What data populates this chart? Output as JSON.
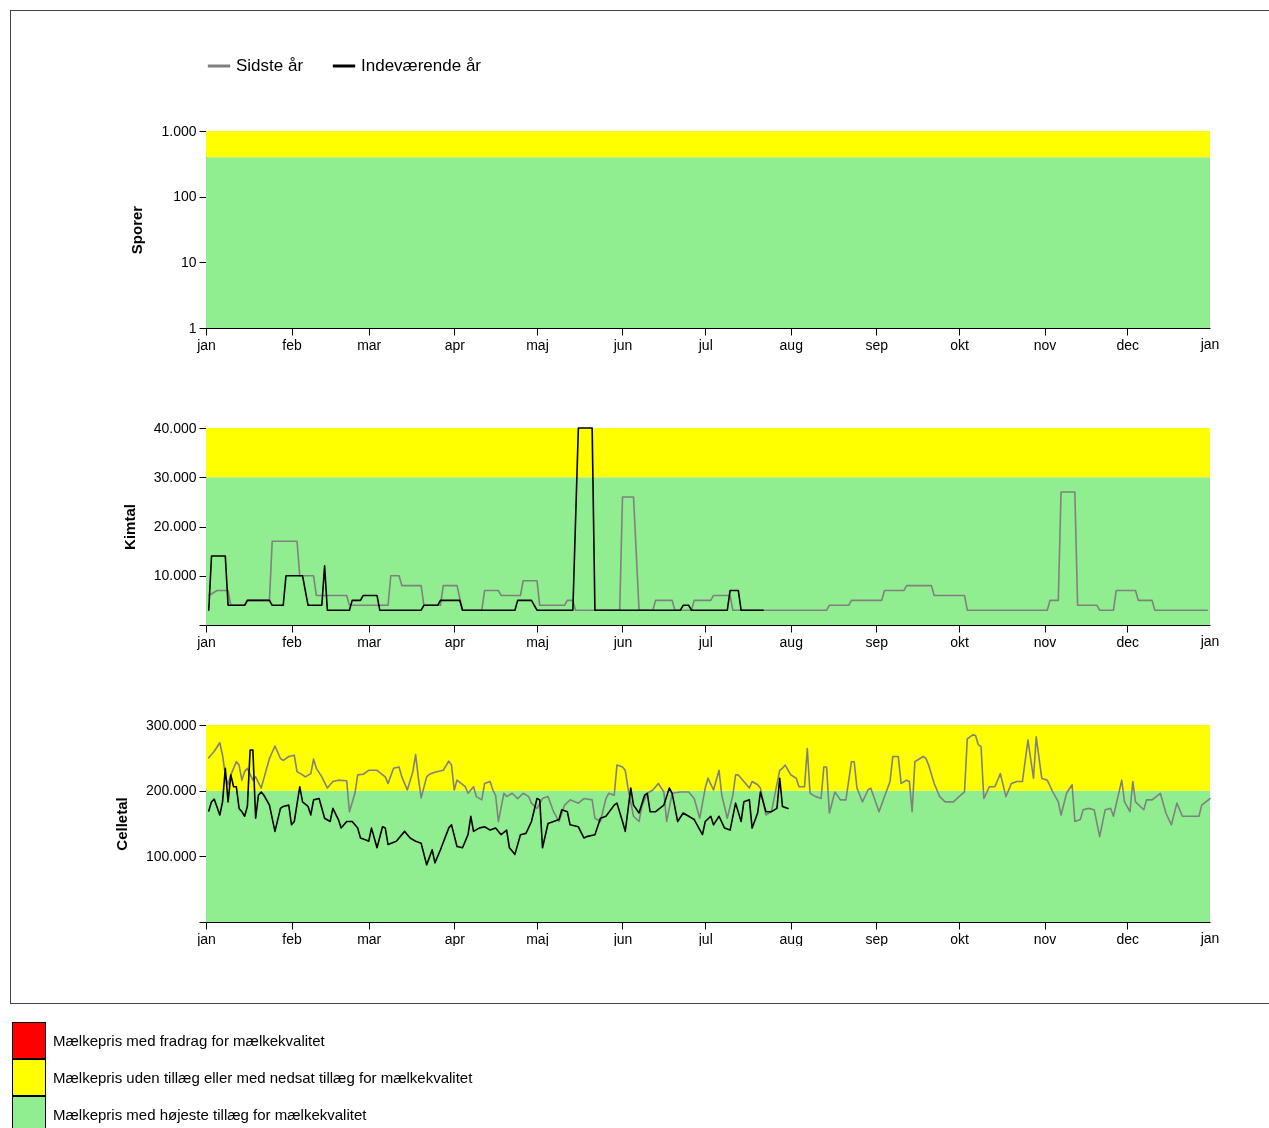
{
  "chart_data": [
    {
      "type": "line",
      "ylabel": "Sporer",
      "log": "y",
      "xlim": [
        "--01-01",
        "--12-31"
      ],
      "ylim": [
        1,
        1000
      ],
      "xticks": [
        {
          "value": "--01-01",
          "label": "jan"
        },
        {
          "value": "--02-01",
          "label": "feb"
        },
        {
          "value": "--03-01",
          "label": "mar"
        },
        {
          "value": "--04-01",
          "label": "apr"
        },
        {
          "value": "--05-01",
          "label": "maj"
        },
        {
          "value": "--06-01",
          "label": "jun"
        },
        {
          "value": "--07-01",
          "label": "jul"
        },
        {
          "value": "--08-01",
          "label": "aug"
        },
        {
          "value": "--09-01",
          "label": "sep"
        },
        {
          "value": "--10-01",
          "label": "okt"
        },
        {
          "value": "--11-01",
          "label": "nov"
        },
        {
          "value": "--12-01",
          "label": "dec"
        }
      ],
      "annotations": [
        "jan"
      ],
      "yticks": [
        {
          "value": 1,
          "label": "1"
        },
        {
          "value": 10,
          "label": "10"
        },
        {
          "value": 100,
          "label": "100"
        },
        {
          "value": 1000,
          "label": "1.000"
        }
      ],
      "bands": [
        {
          "axis": "y",
          "from": 1,
          "to": 400,
          "color": "#90ee90"
        },
        {
          "axis": "y",
          "from": 400,
          "to": 1000,
          "color": "#ffff00"
        }
      ]
    },
    {
      "type": "line",
      "ylabel": "Kimtal",
      "legend": "top",
      "xlim": [
        "--01-01",
        "--12-31"
      ],
      "ylim": [
        0,
        40000
      ],
      "xticks": [
        {
          "value": "--01-01",
          "label": "jan"
        },
        {
          "value": "--02-01",
          "label": "feb"
        },
        {
          "value": "--03-01",
          "label": "mar"
        },
        {
          "value": "--04-01",
          "label": "apr"
        },
        {
          "value": "--05-01",
          "label": "maj"
        },
        {
          "value": "--06-01",
          "label": "jun"
        },
        {
          "value": "--07-01",
          "label": "jul"
        },
        {
          "value": "--08-01",
          "label": "aug"
        },
        {
          "value": "--09-01",
          "label": "sep"
        },
        {
          "value": "--10-01",
          "label": "okt"
        },
        {
          "value": "--11-01",
          "label": "nov"
        },
        {
          "value": "--12-01",
          "label": "dec"
        }
      ],
      "annotations": [
        "jan"
      ],
      "yticks": [
        {
          "value": 0,
          "label": null
        },
        {
          "value": 10000,
          "label": "10.000"
        },
        {
          "value": 20000,
          "label": "20.000"
        },
        {
          "value": 30000,
          "label": "30.000"
        },
        {
          "value": 40000,
          "label": "40.000"
        }
      ],
      "bands": [
        {
          "axis": "y",
          "from": 0,
          "to": 30000,
          "color": "#90ee90"
        },
        {
          "axis": "y",
          "from": 30000,
          "to": 40000,
          "color": "#ffff00"
        }
      ],
      "series": [
        {
          "name": "Sidste år",
          "color": "#808080",
          "x": [
            "--01-02",
            "--01-05",
            "--01-09",
            "--01-10",
            "--01-15",
            "--01-16",
            "--01-24",
            "--01-25",
            "--02-03",
            "--02-04",
            "--02-09",
            "--02-10",
            "--02-21",
            "--02-22",
            "--03-08",
            "--03-09",
            "--03-12",
            "--03-13",
            "--03-20",
            "--03-21",
            "--03-27",
            "--03-28",
            "--04-02",
            "--04-04",
            "--04-11",
            "--04-12",
            "--04-17",
            "--04-18",
            "--04-25",
            "--04-26",
            "--05-01",
            "--05-02",
            "--05-11",
            "--05-12",
            "--05-14",
            "--05-15",
            "--05-31",
            "--06-01",
            "--06-05",
            "--06-07",
            "--06-12",
            "--06-13",
            "--06-19",
            "--06-20",
            "--06-26",
            "--06-27",
            "--07-03",
            "--07-04",
            "--07-10",
            "--07-11",
            "--08-14",
            "--08-15",
            "--08-22",
            "--08-23",
            "--09-03",
            "--09-04",
            "--09-11",
            "--09-12",
            "--09-21",
            "--09-22",
            "--10-03",
            "--10-04",
            "--11-02",
            "--11-03",
            "--11-06",
            "--11-07",
            "--11-12",
            "--11-13",
            "--11-20",
            "--11-21",
            "--11-26",
            "--11-27",
            "--12-04",
            "--12-05",
            "--12-10",
            "--12-11",
            "--12-30"
          ],
          "values": [
            6000,
            7000,
            7000,
            4000,
            4000,
            5000,
            5000,
            17000,
            17000,
            10000,
            10000,
            6000,
            6000,
            4000,
            4000,
            10000,
            10000,
            8000,
            8000,
            4000,
            4000,
            8000,
            8000,
            3000,
            3000,
            7000,
            7000,
            6000,
            6000,
            9000,
            9000,
            4000,
            4000,
            5000,
            5000,
            3000,
            3000,
            26000,
            26000,
            3000,
            3000,
            5000,
            5000,
            3000,
            3000,
            5000,
            5000,
            6000,
            6000,
            3000,
            3000,
            4000,
            4000,
            5000,
            5000,
            7000,
            7000,
            8000,
            8000,
            6000,
            6000,
            3000,
            3000,
            5000,
            5000,
            27000,
            27000,
            4000,
            4000,
            3000,
            3000,
            7000,
            7000,
            5000,
            5000,
            3000,
            3000
          ]
        },
        {
          "name": "Indeværende år",
          "color": "#000000",
          "x": [
            "--01-02",
            "--01-03",
            "--01-08",
            "--01-09",
            "--01-15",
            "--01-16",
            "--01-24",
            "--01-25",
            "--01-29",
            "--01-30",
            "--02-05",
            "--02-07",
            "--02-12",
            "--02-13",
            "--02-14",
            "--02-22",
            "--02-23",
            "--02-26",
            "--02-27",
            "--03-04",
            "--03-05",
            "--03-20",
            "--03-21",
            "--03-26",
            "--03-27",
            "--04-03",
            "--04-04",
            "--04-23",
            "--04-24",
            "--04-29",
            "--05-01",
            "--05-14",
            "--05-16",
            "--05-21",
            "--05-22",
            "--06-22",
            "--06-23",
            "--06-25",
            "--06-26",
            "--07-09",
            "--07-10",
            "--07-13",
            "--07-14",
            "--07-22"
          ],
          "values": [
            3000,
            14000,
            14000,
            4000,
            4000,
            5000,
            5000,
            4000,
            4000,
            10000,
            10000,
            4000,
            4000,
            12000,
            3000,
            3000,
            5000,
            5000,
            6000,
            6000,
            3000,
            3000,
            4000,
            4000,
            5000,
            5000,
            3000,
            3000,
            5000,
            5000,
            3000,
            3000,
            40000,
            40000,
            3000,
            3000,
            4000,
            4000,
            3000,
            3000,
            7000,
            7000,
            3000,
            3000
          ]
        }
      ]
    },
    {
      "type": "line",
      "ylabel": "Celletal",
      "xlim": [
        "--01-01",
        "--12-31"
      ],
      "ylim": [
        0,
        300000
      ],
      "xticks": [
        {
          "value": "--01-01",
          "label": "jan"
        },
        {
          "value": "--02-01",
          "label": "feb"
        },
        {
          "value": "--03-01",
          "label": "mar"
        },
        {
          "value": "--04-01",
          "label": "apr"
        },
        {
          "value": "--05-01",
          "label": "maj"
        },
        {
          "value": "--06-01",
          "label": "jun"
        },
        {
          "value": "--07-01",
          "label": "jul"
        },
        {
          "value": "--08-01",
          "label": "aug"
        },
        {
          "value": "--09-01",
          "label": "sep"
        },
        {
          "value": "--10-01",
          "label": "okt"
        },
        {
          "value": "--11-01",
          "label": "nov"
        },
        {
          "value": "--12-01",
          "label": "dec"
        }
      ],
      "annotations": [
        "jan"
      ],
      "yticks": [
        {
          "value": 0,
          "label": null
        },
        {
          "value": 100000,
          "label": "100.000"
        },
        {
          "value": 200000,
          "label": "200.000"
        },
        {
          "value": 300000,
          "label": "300.000"
        }
      ],
      "bands": [
        {
          "axis": "y",
          "from": 0,
          "to": 200000,
          "color": "#90ee90"
        },
        {
          "axis": "y",
          "from": 200000,
          "to": 300000,
          "color": "#ffff00"
        }
      ],
      "series": [
        {
          "color": "#808080",
          "x": [
            "--01-02",
            "--01-04",
            "--01-06",
            "--01-07",
            "--01-08",
            "--01-09",
            "--01-10",
            "--01-12",
            "--01-13",
            "--01-14",
            "--01-15",
            "--01-16",
            "--01-18",
            "--01-19",
            "--01-21",
            "--01-22",
            "--01-24",
            "--01-26",
            "--01-28",
            "--01-29",
            "--01-31",
            "--02-02",
            "--02-03",
            "--02-05",
            "--02-06",
            "--02-08",
            "--02-09",
            "--02-10",
            "--02-12",
            "--02-14",
            "--02-16",
            "--02-18",
            "--02-21",
            "--02-22",
            "--02-24",
            "--02-25",
            "--02-27",
            "--03-01",
            "--03-04",
            "--03-07",
            "--03-08",
            "--03-10",
            "--03-12",
            "--03-13",
            "--03-15",
            "--03-17",
            "--03-18",
            "--03-19",
            "--03-20",
            "--03-22",
            "--03-23",
            "--03-25",
            "--03-28",
            "--03-30",
            "--03-31",
            "--04-01",
            "--04-02",
            "--04-05",
            "--04-06",
            "--04-08",
            "--04-09",
            "--04-11",
            "--04-12",
            "--04-14",
            "--04-15",
            "--04-16",
            "--04-17",
            "--04-19",
            "--04-20",
            "--04-22",
            "--04-24",
            "--04-26",
            "--04-28",
            "--04-29",
            "--05-01",
            "--05-03",
            "--05-05",
            "--05-07",
            "--05-09",
            "--05-11",
            "--05-13",
            "--05-16",
            "--05-18",
            "--05-21",
            "--05-22",
            "--05-24",
            "--05-26",
            "--05-27",
            "--05-29",
            "--05-30",
            "--06-01",
            "--06-02",
            "--06-03",
            "--06-05",
            "--06-07",
            "--06-08",
            "--06-10",
            "--06-12",
            "--06-14",
            "--06-16",
            "--06-17",
            "--06-19",
            "--06-22",
            "--06-25",
            "--06-27",
            "--06-29",
            "--07-01",
            "--07-02",
            "--07-04",
            "--07-06",
            "--07-07",
            "--07-09",
            "--07-11",
            "--07-12",
            "--07-13",
            "--07-15",
            "--07-17",
            "--07-18",
            "--07-20",
            "--07-21",
            "--07-23",
            "--07-25",
            "--07-28",
            "--07-29",
            "--07-30",
            "--08-01",
            "--08-03",
            "--08-04",
            "--08-06",
            "--08-07",
            "--08-08",
            "--08-10",
            "--08-12",
            "--08-13",
            "--08-14",
            "--08-15",
            "--08-17",
            "--08-19",
            "--08-21",
            "--08-23",
            "--08-24",
            "--08-25",
            "--08-27",
            "--08-29",
            "--08-30",
            "--09-02",
            "--09-04",
            "--09-06",
            "--09-07",
            "--09-09",
            "--09-10",
            "--09-12",
            "--09-13",
            "--09-14",
            "--09-15",
            "--09-18",
            "--09-19",
            "--09-20",
            "--09-22",
            "--09-24",
            "--09-26",
            "--09-29",
            "--10-01",
            "--10-03",
            "--10-04",
            "--10-06",
            "--10-07",
            "--10-08",
            "--10-09",
            "--10-10",
            "--10-12",
            "--10-14",
            "--10-16",
            "--10-18",
            "--10-20",
            "--10-22",
            "--10-24",
            "--10-26",
            "--10-28",
            "--10-29",
            "--10-31",
            "--11-02",
            "--11-04",
            "--11-06",
            "--11-07",
            "--11-09",
            "--11-11",
            "--11-12",
            "--11-14",
            "--11-15",
            "--11-17",
            "--11-19",
            "--11-21",
            "--11-23",
            "--11-25",
            "--11-26",
            "--11-29",
            "--11-30",
            "--12-02",
            "--12-03",
            "--12-04",
            "--12-07",
            "--12-08",
            "--12-10",
            "--12-13",
            "--12-15",
            "--12-17",
            "--12-19",
            "--12-21",
            "--12-24",
            "--12-27",
            "--12-28",
            "--12-31"
          ],
          "values": [
            250000,
            260000,
            273000,
            254000,
            224000,
            209000,
            224000,
            244000,
            239000,
            216000,
            229000,
            234000,
            216000,
            221000,
            204000,
            219000,
            249000,
            268000,
            249000,
            246000,
            252000,
            254000,
            229000,
            224000,
            221000,
            226000,
            248000,
            234000,
            221000,
            204000,
            214000,
            216000,
            215000,
            168000,
            196000,
            224000,
            225000,
            231000,
            231000,
            221000,
            211000,
            234000,
            236000,
            221000,
            201000,
            229000,
            255000,
            219000,
            189000,
            221000,
            225000,
            228000,
            231000,
            245000,
            239000,
            201000,
            216000,
            206000,
            196000,
            206000,
            191000,
            186000,
            211000,
            214000,
            201000,
            193000,
            153000,
            196000,
            191000,
            196000,
            188000,
            196000,
            191000,
            181000,
            173000,
            188000,
            191000,
            168000,
            153000,
            178000,
            186000,
            181000,
            188000,
            186000,
            158000,
            153000,
            188000,
            196000,
            193000,
            239000,
            236000,
            231000,
            204000,
            161000,
            153000,
            176000,
            196000,
            201000,
            211000,
            198000,
            153000,
            196000,
            198000,
            198000,
            188000,
            158000,
            204000,
            219000,
            201000,
            231000,
            193000,
            158000,
            193000,
            224000,
            224000,
            214000,
            204000,
            214000,
            209000,
            204000,
            163000,
            168000,
            231000,
            234000,
            239000,
            224000,
            219000,
            206000,
            206000,
            264000,
            196000,
            191000,
            188000,
            236000,
            236000,
            166000,
            198000,
            186000,
            186000,
            244000,
            244000,
            204000,
            183000,
            201000,
            204000,
            168000,
            191000,
            214000,
            252000,
            252000,
            211000,
            216000,
            214000,
            168000,
            244000,
            252000,
            249000,
            239000,
            211000,
            191000,
            183000,
            183000,
            191000,
            198000,
            279000,
            285000,
            284000,
            270000,
            267000,
            188000,
            206000,
            206000,
            226000,
            191000,
            211000,
            214000,
            214000,
            277000,
            219000,
            282000,
            219000,
            216000,
            198000,
            183000,
            163000,
            196000,
            209000,
            153000,
            156000,
            171000,
            173000,
            171000,
            130000,
            171000,
            173000,
            161000,
            216000,
            183000,
            168000,
            214000,
            183000,
            171000,
            186000,
            186000,
            196000,
            166000,
            148000,
            181000,
            161000,
            161000,
            161000,
            178000,
            188000
          ]
        },
        {
          "color": "#000000",
          "x": [
            "--01-02",
            "--01-03",
            "--01-04",
            "--01-06",
            "--01-07",
            "--01-08",
            "--01-09",
            "--01-10",
            "--01-11",
            "--01-12",
            "--01-13",
            "--01-14",
            "--01-15",
            "--01-16",
            "--01-17",
            "--01-18",
            "--01-19",
            "--01-20",
            "--01-21",
            "--01-22",
            "--01-24",
            "--01-26",
            "--01-28",
            "--01-29",
            "--01-31",
            "--02-01",
            "--02-02",
            "--02-04",
            "--02-05",
            "--02-07",
            "--02-08",
            "--02-09",
            "--02-11",
            "--02-13",
            "--02-15",
            "--02-16",
            "--02-18",
            "--02-19",
            "--02-21",
            "--02-23",
            "--02-25",
            "--02-26",
            "--02-28",
            "--03-01",
            "--03-02",
            "--03-04",
            "--03-06",
            "--03-07",
            "--03-08",
            "--03-11",
            "--03-14",
            "--03-16",
            "--03-18",
            "--03-20",
            "--03-22",
            "--03-24",
            "--03-25",
            "--03-27",
            "--03-30",
            "--03-31",
            "--04-02",
            "--04-04",
            "--04-06",
            "--04-07",
            "--04-08",
            "--04-10",
            "--04-12",
            "--04-14",
            "--04-16",
            "--04-18",
            "--04-20",
            "--04-21",
            "--04-23",
            "--04-25",
            "--04-27",
            "--04-29",
            "--05-01",
            "--05-02",
            "--05-03",
            "--05-05",
            "--05-07",
            "--05-09",
            "--05-10",
            "--05-12",
            "--05-13",
            "--05-16",
            "--05-18",
            "--05-19",
            "--05-22",
            "--05-24",
            "--05-26",
            "--05-29",
            "--05-30",
            "--06-01",
            "--06-02",
            "--06-04",
            "--06-05",
            "--06-07",
            "--06-09",
            "--06-10",
            "--06-11",
            "--06-13",
            "--06-16",
            "--06-18",
            "--06-19",
            "--06-21",
            "--06-23",
            "--06-25",
            "--06-27",
            "--06-30",
            "--07-01",
            "--07-03",
            "--07-04",
            "--07-06",
            "--07-08",
            "--07-10",
            "--07-12",
            "--07-14",
            "--07-15",
            "--07-17",
            "--07-18",
            "--07-20",
            "--07-21",
            "--07-23",
            "--07-25",
            "--07-27",
            "--07-28",
            "--07-29",
            "--07-31"
          ],
          "values": [
            169000,
            183000,
            187000,
            163000,
            183000,
            234000,
            183000,
            224000,
            206000,
            206000,
            173000,
            168000,
            161000,
            176000,
            262000,
            262000,
            158000,
            193000,
            198000,
            193000,
            178000,
            138000,
            173000,
            176000,
            178000,
            148000,
            153000,
            206000,
            183000,
            176000,
            163000,
            186000,
            188000,
            158000,
            153000,
            173000,
            156000,
            143000,
            153000,
            153000,
            143000,
            128000,
            125000,
            123000,
            143000,
            113000,
            145000,
            143000,
            118000,
            123000,
            138000,
            128000,
            123000,
            120000,
            87000,
            110000,
            90000,
            110000,
            143000,
            148000,
            115000,
            113000,
            133000,
            161000,
            138000,
            143000,
            145000,
            140000,
            143000,
            133000,
            140000,
            113000,
            103000,
            133000,
            135000,
            153000,
            188000,
            186000,
            113000,
            150000,
            153000,
            156000,
            171000,
            168000,
            148000,
            145000,
            128000,
            130000,
            133000,
            158000,
            161000,
            178000,
            181000,
            153000,
            138000,
            204000,
            178000,
            166000,
            193000,
            196000,
            168000,
            168000,
            178000,
            204000,
            196000,
            153000,
            166000,
            161000,
            156000,
            133000,
            153000,
            161000,
            148000,
            161000,
            143000,
            140000,
            181000,
            153000,
            183000,
            186000,
            143000,
            166000,
            198000,
            168000,
            168000,
            173000,
            219000,
            176000,
            173000
          ]
        }
      ]
    },
    {
      "type": "other",
      "annotations": [
        "Mælkepris med fradrag for mælkekvalitet",
        "Mælkepris uden tillæg eller med nedsat tillæg for mælkekvalitet",
        "Mælkepris med højeste tillæg for mælkekvalitet"
      ]
    }
  ]
}
